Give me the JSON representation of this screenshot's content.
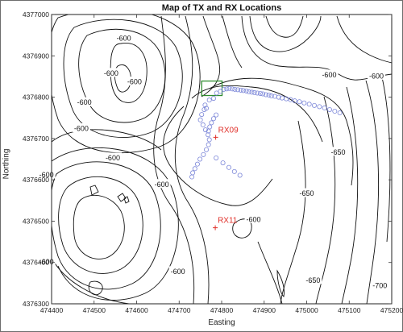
{
  "chart_data": {
    "type": "scatter",
    "title": "Map of TX and RX Locations",
    "xlabel": "Easting",
    "ylabel": "Northing",
    "xlim": [
      474400,
      475200
    ],
    "ylim": [
      4376300,
      4377000
    ],
    "x_ticks": [
      "474400",
      "474500",
      "474600",
      "474700",
      "474800",
      "474900",
      "475000",
      "475100",
      "475200"
    ],
    "y_ticks": [
      "4376300",
      "4376400",
      "4376500",
      "4376600",
      "4376700",
      "4376800",
      "4376900",
      "4377000"
    ],
    "contour_labels": [
      {
        "text": "-600",
        "x": 474570,
        "y": 4376943
      },
      {
        "text": "-600",
        "x": 474540,
        "y": 4376859
      },
      {
        "text": "-600",
        "x": 474595,
        "y": 4376838
      },
      {
        "text": "-600",
        "x": 474477,
        "y": 4376788
      },
      {
        "text": "-600",
        "x": 474470,
        "y": 4376725
      },
      {
        "text": "-600",
        "x": 474544,
        "y": 4376654
      },
      {
        "text": "-600",
        "x": 474388,
        "y": 4376613
      },
      {
        "text": "-600",
        "x": 474659,
        "y": 4376590
      },
      {
        "text": "-600",
        "x": 474875,
        "y": 4376505
      },
      {
        "text": "-600",
        "x": 474388,
        "y": 4376402
      },
      {
        "text": "-600",
        "x": 474697,
        "y": 4376379
      },
      {
        "text": "-600",
        "x": 475053,
        "y": 4376855
      },
      {
        "text": "-600",
        "x": 475164,
        "y": 4376852
      },
      {
        "text": "-650",
        "x": 475074,
        "y": 4376668
      },
      {
        "text": "-650",
        "x": 475000,
        "y": 4376568
      },
      {
        "text": "-650",
        "x": 475015,
        "y": 4376358
      },
      {
        "text": "-700",
        "x": 475172,
        "y": 4376345
      }
    ],
    "tx_box": {
      "x": [
        474753,
        474801
      ],
      "y": [
        4376804,
        4376839
      ],
      "color": "#2e8b2e"
    },
    "receivers": [
      {
        "label": "RX09",
        "x": 474786,
        "y": 4376703,
        "color": "#e0302a"
      },
      {
        "label": "RX11",
        "x": 474785,
        "y": 4376484,
        "color": "#e0302a"
      }
    ],
    "rx_points": {
      "color": "#7b86d8",
      "x": [
        474761,
        474764,
        474771,
        474781,
        474788,
        474797,
        474805,
        474812,
        474818,
        474825,
        474831,
        474838,
        474845,
        474851,
        474858,
        474864,
        474871,
        474877,
        474884,
        474891,
        474897,
        474904,
        474911,
        474917,
        474925,
        474934,
        474942,
        474952,
        474962,
        474972,
        474983,
        474994,
        475006,
        475018,
        475030,
        475042,
        475054,
        475066,
        475078,
        474787,
        474781,
        474776,
        474772,
        474769,
        474759,
        474753,
        474750,
        474756,
        474762,
        474768,
        474771,
        474769,
        474764,
        474757,
        474749,
        474743,
        474737,
        474732,
        474730,
        474787,
        474803,
        474817,
        474830,
        474843
      ],
      "y": [
        4376781,
        4376773,
        4376793,
        4376797,
        4376810,
        4376814,
        4376819,
        4376820,
        4376821,
        4376820,
        4376819,
        4376818,
        4376817,
        4376816,
        4376815,
        4376813,
        4376812,
        4376811,
        4376810,
        4376809,
        4376808,
        4376806,
        4376805,
        4376803,
        4376802,
        4376800,
        4376798,
        4376796,
        4376794,
        4376791,
        4376789,
        4376786,
        4376783,
        4376780,
        4376777,
        4376774,
        4376770,
        4376766,
        4376762,
        4376757,
        4376748,
        4376738,
        4376728,
        4376718,
        4376770,
        4376758,
        4376745,
        4376733,
        4376721,
        4376709,
        4376697,
        4376685,
        4376673,
        4376661,
        4376650,
        4376638,
        4376627,
        4376617,
        4376607,
        4376653,
        4376641,
        4376630,
        4376620,
        4376611
      ]
    },
    "grid": false,
    "colors": {
      "contour": "#111111",
      "axis": "#333333"
    }
  }
}
